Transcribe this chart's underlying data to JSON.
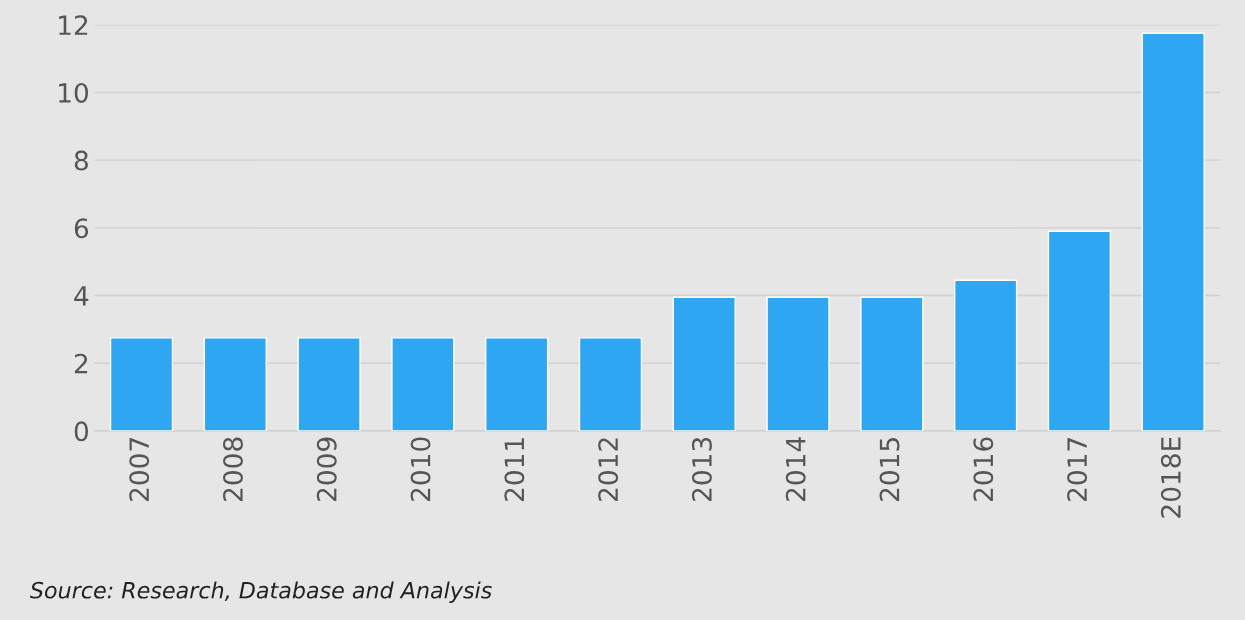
{
  "chart_data": {
    "type": "bar",
    "categories": [
      "2007",
      "2008",
      "2009",
      "2010",
      "2011",
      "2012",
      "2013",
      "2014",
      "2015",
      "2016",
      "2017",
      "2018E"
    ],
    "values": [
      2.75,
      2.75,
      2.75,
      2.75,
      2.75,
      2.75,
      3.95,
      3.95,
      3.95,
      4.45,
      5.9,
      11.75
    ],
    "color": "#2ea6f2",
    "ylim": [
      0,
      12
    ],
    "yticks": [
      0,
      2,
      4,
      6,
      8,
      10,
      12
    ],
    "grid": "y",
    "annotations": [
      "Source: Research, Database and Analysis"
    ]
  }
}
